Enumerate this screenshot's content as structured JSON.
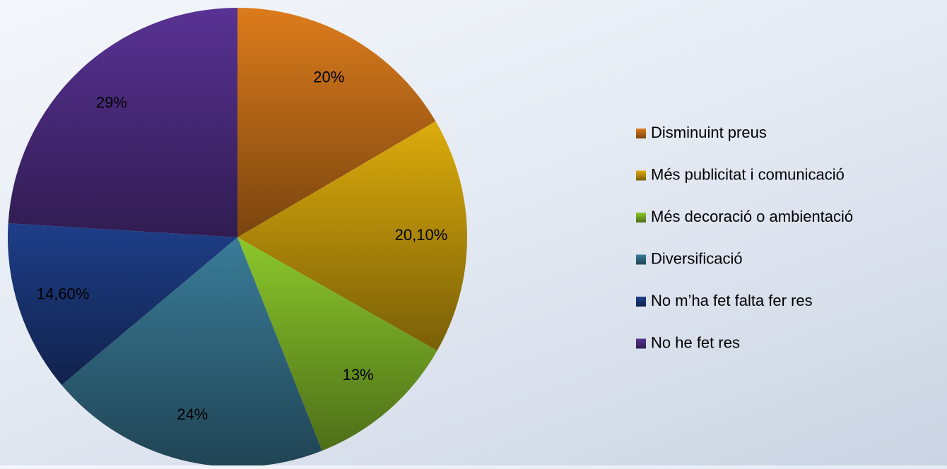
{
  "chart_data": {
    "type": "pie",
    "categories": [
      "Disminuint preus",
      "Més publicitat i comunicació",
      "Més decoració o ambientació",
      "Diversificació",
      "No m’ha fet falta fer res",
      "No he fet res"
    ],
    "values": [
      20,
      20.1,
      13,
      24,
      14.6,
      29
    ],
    "value_labels": [
      "20%",
      "20,10%",
      "13%",
      "24%",
      "14,60%",
      "29%"
    ],
    "colors": [
      "#dc7c1c",
      "#dcac0c",
      "#8cc82c",
      "#3a7c98",
      "#1e3e88",
      "#583294"
    ],
    "legend": "right"
  }
}
